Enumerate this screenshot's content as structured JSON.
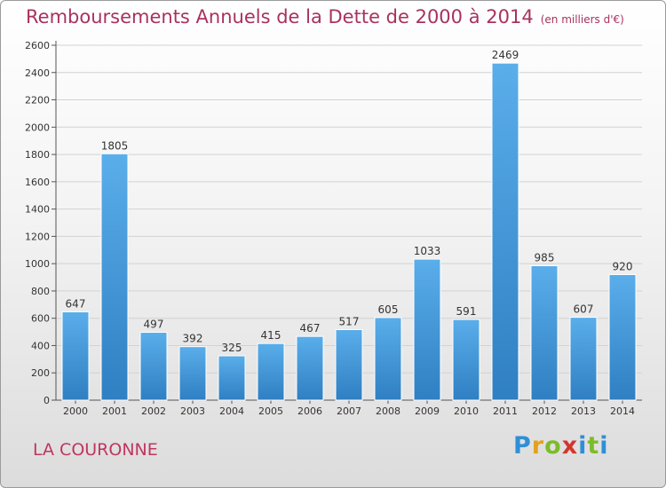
{
  "header": {
    "title": "Remboursements Annuels de la Dette de 2000 à 2014",
    "subtitle": "(en milliers d'€)"
  },
  "footer": {
    "commune": "LA COURONNE",
    "logo_letters": [
      "P",
      "r",
      "o",
      "x",
      "i",
      "t",
      "i"
    ]
  },
  "colors": {
    "bar_light": "#5aaeea",
    "bar_dark": "#2f7fc2",
    "title": "#a8325f",
    "grid": "#d2d2d2"
  },
  "chart_data": {
    "type": "bar",
    "title": "Remboursements Annuels de la Dette de 2000 à 2014",
    "subtitle": "(en milliers d'€)",
    "categories": [
      "2000",
      "2001",
      "2002",
      "2003",
      "2004",
      "2005",
      "2006",
      "2007",
      "2008",
      "2009",
      "2010",
      "2011",
      "2012",
      "2013",
      "2014"
    ],
    "values": [
      647,
      1805,
      497,
      392,
      325,
      415,
      467,
      517,
      605,
      1033,
      591,
      2469,
      985,
      607,
      920
    ],
    "ylim": [
      0,
      2600
    ],
    "yticks": [
      0,
      200,
      400,
      600,
      800,
      1000,
      1200,
      1400,
      1600,
      1800,
      2000,
      2200,
      2400,
      2600
    ],
    "grid": true,
    "xlabel": "",
    "ylabel": ""
  }
}
